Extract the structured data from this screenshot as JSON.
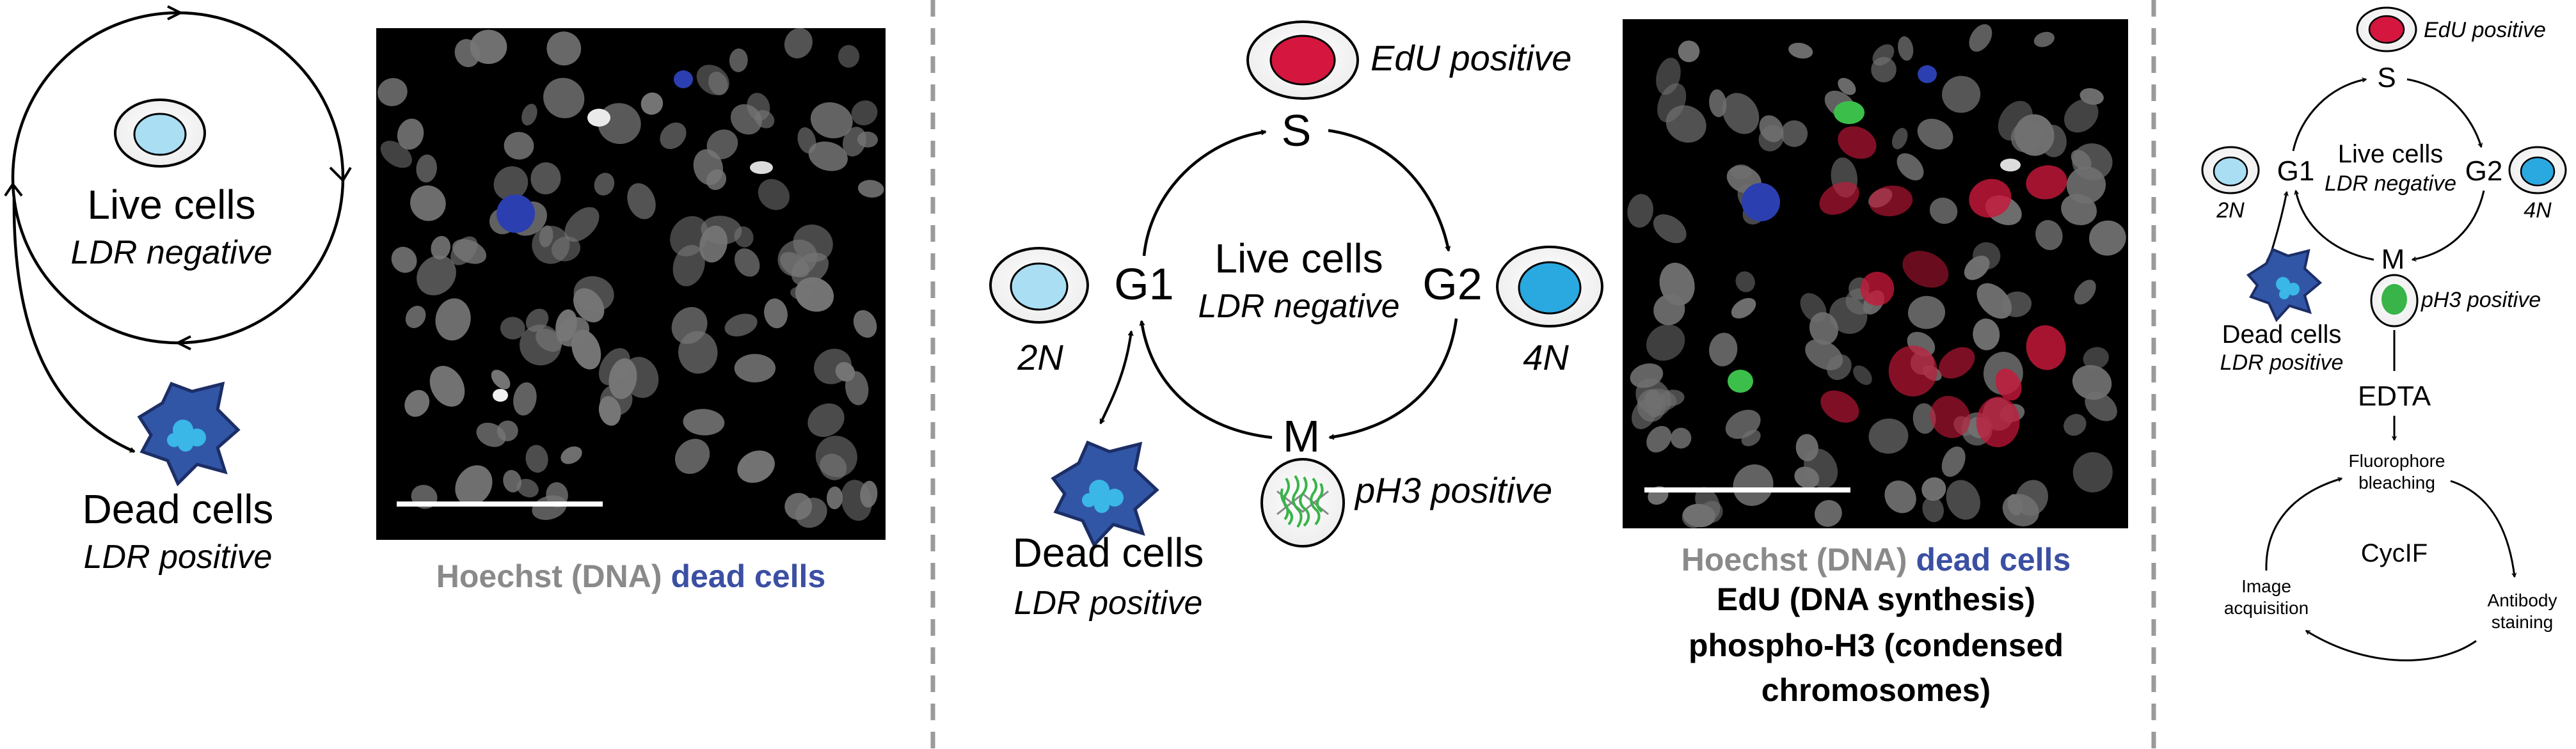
{
  "colors": {
    "gray_text": "#8a8a8a",
    "blue_text": "#3b4fa3",
    "red_text": "#d91a45",
    "green_text": "#58b947",
    "edu_red": "#d5163f",
    "nucleus_light_blue": "#a9def3",
    "nucleus_blue": "#2aa8e0",
    "dead_cell_blue": "#3256a6",
    "divider": "#9a9a9a"
  },
  "panel1": {
    "live_title": "Live cells",
    "live_sub": "LDR negative",
    "dead_title": "Dead cells",
    "dead_sub": "LDR positive",
    "caption_gray": "Hoechst (DNA)",
    "caption_blue": "dead cells"
  },
  "panel2": {
    "s_label": "S",
    "g1_label": "G1",
    "g2_label": "G2",
    "m_label": "M",
    "live_title": "Live cells",
    "live_sub": "LDR negative",
    "edu_label": "EdU positive",
    "ph3_label": "pH3 positive",
    "n2_label": "2N",
    "n4_label": "4N",
    "dead_title": "Dead cells",
    "dead_sub": "LDR positive",
    "caption_gray": "Hoechst (DNA)",
    "caption_blue": "dead cells",
    "caption_red": "EdU (DNA synthesis)",
    "caption_green_1": "phospho-H3 (condensed",
    "caption_green_2": "chromosomes)"
  },
  "panel3": {
    "edu_label": "EdU positive",
    "s_label": "S",
    "g1_label": "G1",
    "g2_label": "G2",
    "m_label": "M",
    "live_title": "Live cells",
    "live_sub": "LDR negative",
    "n2_label": "2N",
    "n4_label": "4N",
    "ph3_label": "pH3 positive",
    "dead_title": "Dead cells",
    "dead_sub": "LDR positive",
    "edta_label": "EDTA",
    "fluor_1": "Fluorophore",
    "fluor_2": "bleaching",
    "cycif_label": "CycIF",
    "image_acq_1": "Image",
    "image_acq_2": "acquisition",
    "antibody_1": "Antibody",
    "antibody_2": "staining"
  }
}
